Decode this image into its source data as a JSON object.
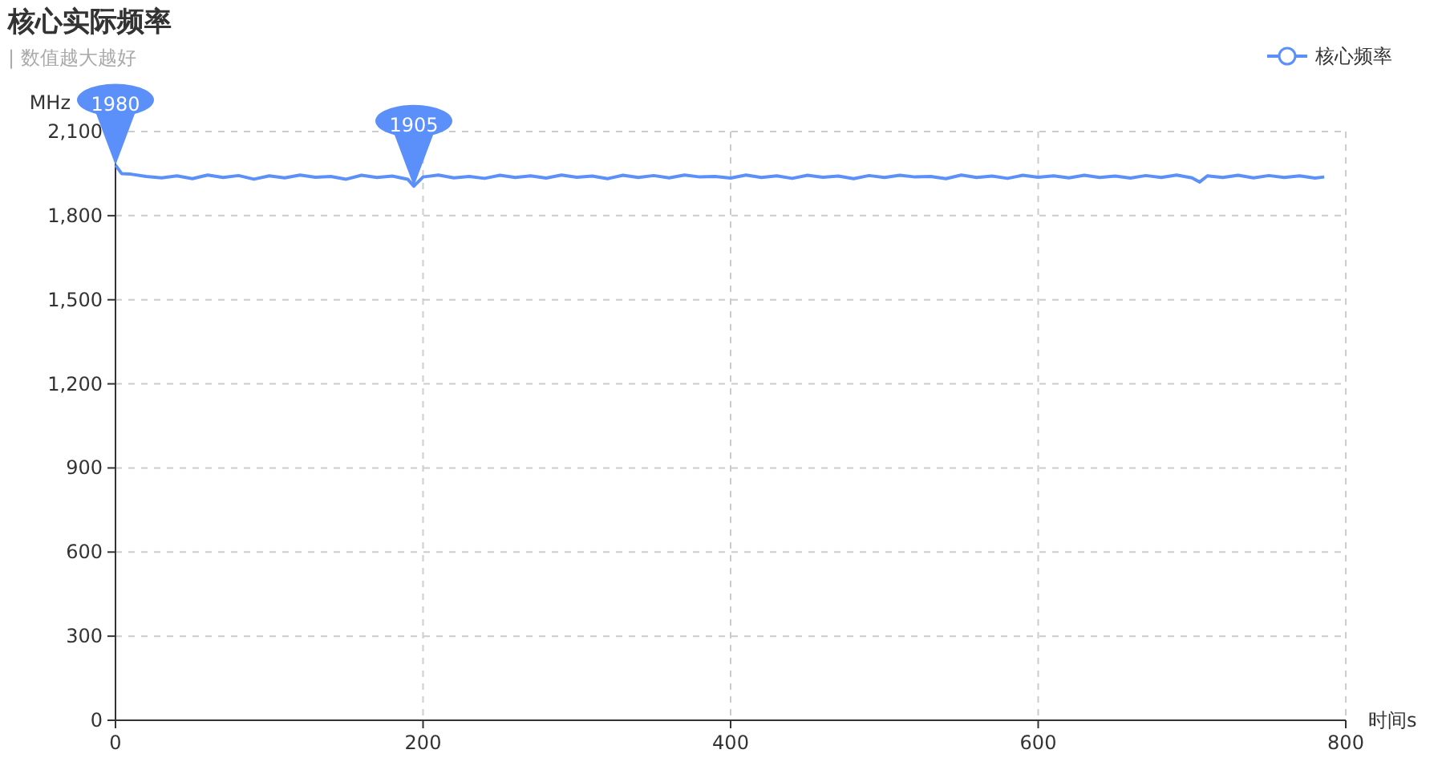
{
  "chart_data": {
    "type": "line",
    "title": "核心实际频率",
    "subtitle": "| 数值越大越好",
    "xlabel": "时间s",
    "ylabel": "MHz",
    "xlim": [
      0,
      800
    ],
    "xticks": [
      0,
      200,
      400,
      600,
      800
    ],
    "ylim": [
      0,
      2100
    ],
    "yticks": [
      0,
      {
        "value": 300,
        "label": "300"
      },
      {
        "value": 600,
        "label": "600"
      },
      {
        "value": 900,
        "label": "900"
      },
      {
        "value": 1200,
        "label": "1,200"
      },
      {
        "value": 1500,
        "label": "1,500"
      },
      {
        "value": 1800,
        "label": "1,800"
      },
      {
        "value": 2100,
        "label": "2,100"
      }
    ],
    "grid": true,
    "legend": "top right",
    "line_style": "solid",
    "series": [
      {
        "name": "核心频率",
        "color": "#5b8ff9",
        "x": [
          0,
          4,
          10,
          20,
          30,
          40,
          50,
          60,
          70,
          80,
          90,
          100,
          110,
          120,
          130,
          140,
          150,
          160,
          170,
          180,
          190,
          194,
          200,
          210,
          220,
          230,
          240,
          250,
          260,
          270,
          280,
          290,
          300,
          310,
          320,
          330,
          340,
          350,
          360,
          370,
          380,
          390,
          400,
          410,
          420,
          430,
          440,
          450,
          460,
          470,
          480,
          490,
          500,
          510,
          520,
          530,
          540,
          550,
          560,
          570,
          580,
          590,
          600,
          610,
          620,
          630,
          640,
          650,
          660,
          670,
          680,
          690,
          700,
          705,
          710,
          720,
          730,
          740,
          750,
          760,
          770,
          780,
          786
        ],
        "values": [
          1980,
          1950,
          1948,
          1940,
          1935,
          1942,
          1932,
          1945,
          1936,
          1943,
          1930,
          1942,
          1935,
          1945,
          1937,
          1940,
          1930,
          1944,
          1936,
          1941,
          1930,
          1905,
          1938,
          1945,
          1935,
          1940,
          1933,
          1944,
          1936,
          1942,
          1934,
          1945,
          1937,
          1941,
          1932,
          1944,
          1936,
          1943,
          1935,
          1945,
          1938,
          1940,
          1934,
          1945,
          1936,
          1942,
          1933,
          1944,
          1937,
          1941,
          1932,
          1943,
          1936,
          1944,
          1938,
          1940,
          1932,
          1945,
          1936,
          1941,
          1933,
          1944,
          1937,
          1942,
          1935,
          1944,
          1936,
          1941,
          1934,
          1943,
          1936,
          1945,
          1935,
          1920,
          1942,
          1936,
          1944,
          1935,
          1943,
          1936,
          1942,
          1934,
          1938
        ]
      }
    ],
    "annotations": [
      {
        "text": "1980",
        "x": 0,
        "y": 1980
      },
      {
        "text": "1905",
        "x": 194,
        "y": 1905
      }
    ]
  }
}
